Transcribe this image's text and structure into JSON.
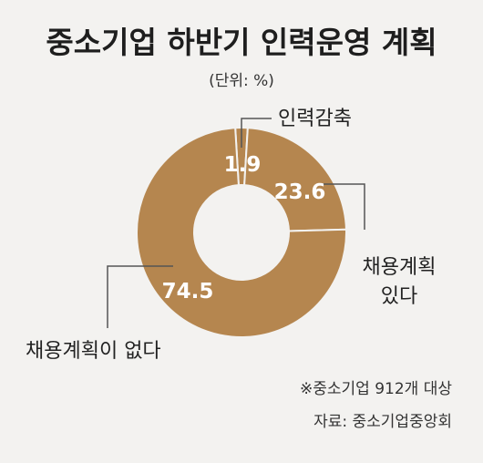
{
  "chart_data": {
    "type": "pie",
    "title": "중소기업 하반기 인력운영 계획",
    "unit_label": "(단위: %)",
    "slices": [
      {
        "label": "인력감축",
        "value": 1.9,
        "display": "1.9"
      },
      {
        "label_lines": [
          "채용계획",
          "있다"
        ],
        "value": 23.6,
        "display": "23.6"
      },
      {
        "label": "채용계획이 없다",
        "value": 74.5,
        "display": "74.5"
      }
    ],
    "footnote": "※중소기업 912개 대상",
    "source": "자료: 중소기업중앙회",
    "colors": {
      "slice": "#b5864f",
      "separator": "#f3f2f0",
      "background": "#f3f2f0",
      "value_text": "#ffffff"
    }
  }
}
